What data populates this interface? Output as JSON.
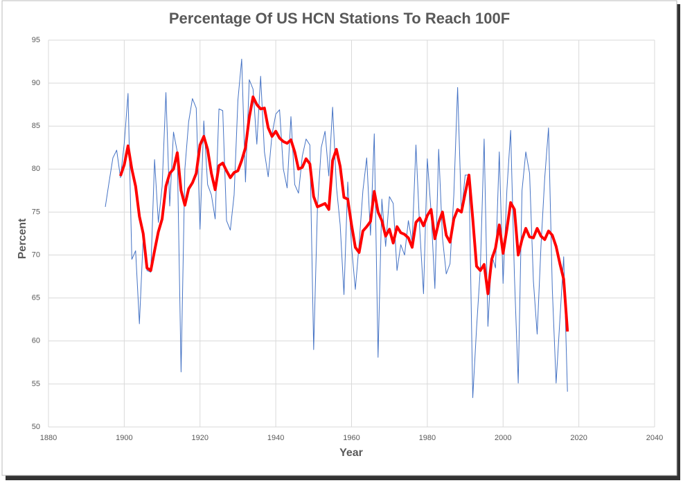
{
  "chart_data": {
    "type": "line",
    "title": "Percentage Of US HCN Stations To Reach 100F",
    "xlabel": "Year",
    "ylabel": "Percent",
    "x": [
      1895,
      1896,
      1897,
      1898,
      1899,
      1900,
      1901,
      1902,
      1903,
      1904,
      1905,
      1906,
      1907,
      1908,
      1909,
      1910,
      1911,
      1912,
      1913,
      1914,
      1915,
      1916,
      1917,
      1918,
      1919,
      1920,
      1921,
      1922,
      1923,
      1924,
      1925,
      1926,
      1927,
      1928,
      1929,
      1930,
      1931,
      1932,
      1933,
      1934,
      1935,
      1936,
      1937,
      1938,
      1939,
      1940,
      1941,
      1942,
      1943,
      1944,
      1945,
      1946,
      1947,
      1948,
      1949,
      1950,
      1951,
      1952,
      1953,
      1954,
      1955,
      1956,
      1957,
      1958,
      1959,
      1960,
      1961,
      1962,
      1963,
      1964,
      1965,
      1966,
      1967,
      1968,
      1969,
      1970,
      1971,
      1972,
      1973,
      1974,
      1975,
      1976,
      1977,
      1978,
      1979,
      1980,
      1981,
      1982,
      1983,
      1984,
      1985,
      1986,
      1987,
      1988,
      1989,
      1990,
      1991,
      1992,
      1993,
      1994,
      1995,
      1996,
      1997,
      1998,
      1999,
      2000,
      2001,
      2002,
      2003,
      2004,
      2005,
      2006,
      2007,
      2008,
      2009,
      2010,
      2011,
      2012,
      2013,
      2014,
      2015,
      2016,
      2017
    ],
    "series": [
      {
        "color": "#4472c4",
        "width": 1,
        "values": [
          75.6,
          78.5,
          81.3,
          82.2,
          79.0,
          83.0,
          88.8,
          69.5,
          70.5,
          62.0,
          72.0,
          68.2,
          68.0,
          81.1,
          73.8,
          78.0,
          88.9,
          75.7,
          84.3,
          82.0,
          56.4,
          80.0,
          85.5,
          88.2,
          87.1,
          73.0,
          85.6,
          78.2,
          77.0,
          74.2,
          87.0,
          86.8,
          74.0,
          72.9,
          77.0,
          88.0,
          92.8,
          78.5,
          90.4,
          89.3,
          82.9,
          90.8,
          82.0,
          79.1,
          84.0,
          86.4,
          86.9,
          80.0,
          77.8,
          86.1,
          78.2,
          77.2,
          81.5,
          83.5,
          82.8,
          59.0,
          75.5,
          82.5,
          84.4,
          79.2,
          87.2,
          78.0,
          73.5,
          65.4,
          78.5,
          71.0,
          66.0,
          71.3,
          77.5,
          81.3,
          72.3,
          84.1,
          58.1,
          76.5,
          71.0,
          76.8,
          76.0,
          68.2,
          71.2,
          70.0,
          74.0,
          71.5,
          82.8,
          73.0,
          65.5,
          81.2,
          75.0,
          66.1,
          82.3,
          72.0,
          67.8,
          69.0,
          77.0,
          89.5,
          75.0,
          79.3,
          79.3,
          53.4,
          61.5,
          68.5,
          83.5,
          61.7,
          70.0,
          68.5,
          82.0,
          66.7,
          77.5,
          84.5,
          67.5,
          55.1,
          77.5,
          82.0,
          79.5,
          67.0,
          60.8,
          71.0,
          79.0,
          84.8,
          66.0,
          55.1,
          62.5,
          69.8,
          54.1
        ]
      },
      {
        "color": "#ff0000",
        "width": 4,
        "values": [
          null,
          null,
          null,
          null,
          79.2,
          80.5,
          82.7,
          80.0,
          78.0,
          74.5,
          72.5,
          68.5,
          68.2,
          70.5,
          72.7,
          74.2,
          78.0,
          79.5,
          80.0,
          81.9,
          77.5,
          75.8,
          77.7,
          78.4,
          79.5,
          82.8,
          83.8,
          82.3,
          79.5,
          77.6,
          80.4,
          80.7,
          79.8,
          79.0,
          79.6,
          79.8,
          81.0,
          82.5,
          86.0,
          88.4,
          87.5,
          87.0,
          87.1,
          84.8,
          83.8,
          84.4,
          83.6,
          83.2,
          83.0,
          83.4,
          82.0,
          80.0,
          80.2,
          81.2,
          80.6,
          76.8,
          75.6,
          75.8,
          76.0,
          75.3,
          81.0,
          82.3,
          80.3,
          76.7,
          76.5,
          73.5,
          70.9,
          70.3,
          72.8,
          73.3,
          73.9,
          77.4,
          75.0,
          74.0,
          72.2,
          73.0,
          71.4,
          73.3,
          72.6,
          72.4,
          72.0,
          70.9,
          73.8,
          74.3,
          73.4,
          74.6,
          75.3,
          71.9,
          73.8,
          75.0,
          72.3,
          71.5,
          74.2,
          75.3,
          75.0,
          77.2,
          79.3,
          74.2,
          68.7,
          68.2,
          68.9,
          65.5,
          69.5,
          70.8,
          73.5,
          70.2,
          73.0,
          76.1,
          75.3,
          70.0,
          71.8,
          73.1,
          72.1,
          72.0,
          73.1,
          72.2,
          71.8,
          72.8,
          72.3,
          71.0,
          69.0,
          67.2,
          61.1
        ]
      }
    ],
    "xlim": [
      1880,
      2040
    ],
    "xticks": [
      1880,
      1900,
      1920,
      1940,
      1960,
      1980,
      2000,
      2020,
      2040
    ],
    "ylim": [
      50,
      95
    ],
    "yticks": [
      50,
      55,
      60,
      65,
      70,
      75,
      80,
      85,
      90,
      95
    ],
    "grid": true
  }
}
